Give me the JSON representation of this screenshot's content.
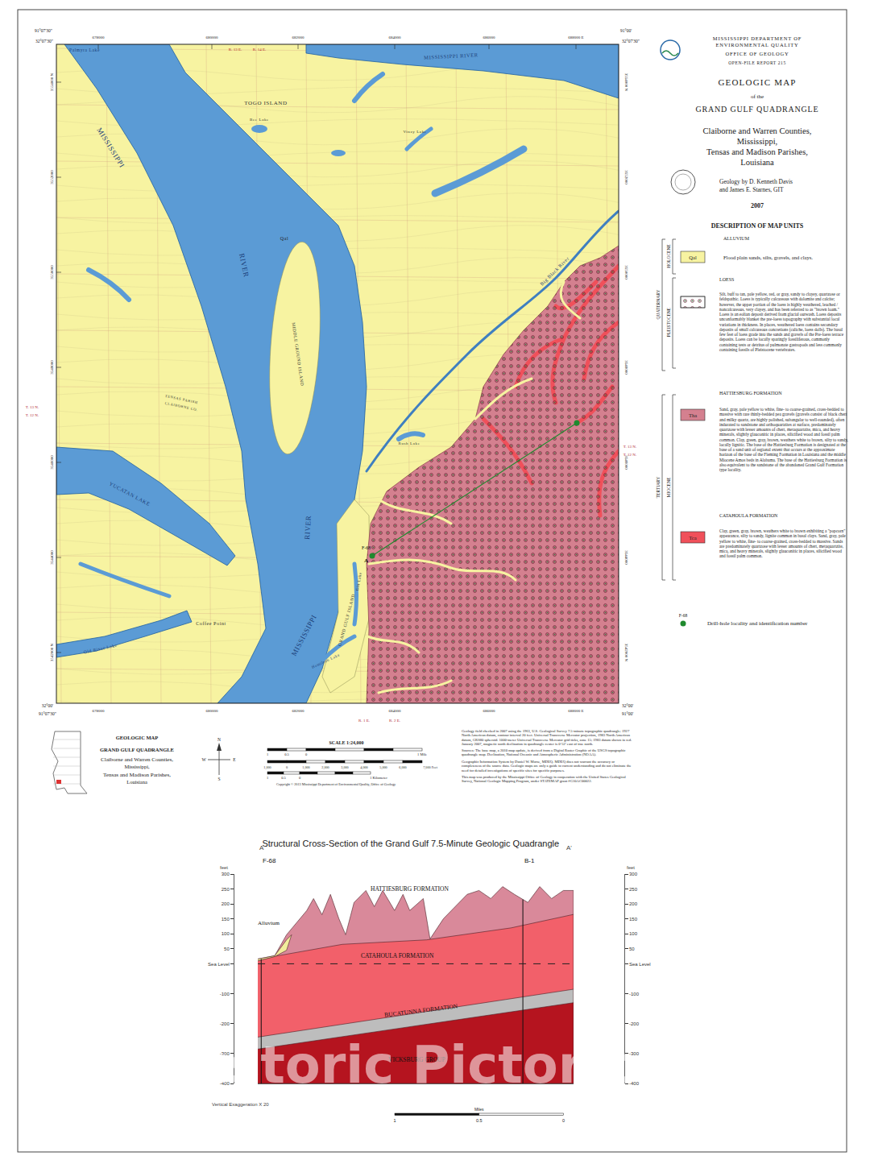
{
  "header": {
    "agency": [
      "MISSISSIPPI DEPARTMENT OF",
      "ENVIRONMENTAL QUALITY"
    ],
    "office": "OFFICE OF GEOLOGY",
    "report": "OPEN-FILE REPORT 215",
    "title": "GEOLOGIC MAP",
    "of": "of the",
    "quad": "GRAND GULF QUADRANGLE",
    "area": [
      "Claiborne and Warren Counties,",
      "Mississippi,",
      "Tensas and Madison Parishes,",
      "Louisiana"
    ],
    "authors": [
      "Geology by D. Kenneth Davis",
      "and James E. Starnes, GIT"
    ],
    "year": "2007"
  },
  "legend": {
    "heading": "DESCRIPTION OF MAP UNITS",
    "eras": [
      "HOLOCENE",
      "QUATERNARY",
      "PLEISTOCENE",
      "TERTIARY",
      "MIOCENE"
    ],
    "units": [
      {
        "name": "ALLUVIUM",
        "symbol": "Qal",
        "color": "#f7f3a1",
        "description": "Flood plain sands, silts, gravels, and clays."
      },
      {
        "name": "LOESS",
        "marker": "dots",
        "description": "Silt, buff to tan, pale yellow, red, or gray, sandy to clayey, quartzose or feldspathic. Loess is typically calcareous with dolomite and calcite; however, the upper portion of the loess is highly weathered, leached / noncalcareous, very clayey, and has been referred to as \"brown loam.\" Loess is an eolian deposit derived from glacial outwash. Loess deposits unconformably blanket the pre-loess topography with substantial local variations in thickness. In places, weathered loess contains secondary deposits of small calcareous concretions (caliche, loess dolls). The basal few feet of loess grade into the sands and gravels of the Pre-loess terrace deposits. Loess can be locally sparingly fossiliferous, commonly containing tests or detritus of pulmonate gastropods and less commonly containing fossils of Pleistocene vertebrates."
      },
      {
        "name": "HATTIESBURG FORMATION",
        "symbol": "Tha",
        "color": "#d4808f",
        "description": "Sand, gray, pale yellow to white, fine- to coarse-grained, cross-bedded to massive with rare thinly-bedded pea gravels (gravels consist of black chert and milky quartz, are highly polished, subangular to well-rounded), often indurated to sandstone and orthoquartzites at surface, predominately quartzose with lesser amounts of chert, metaquartzite, mica, and heavy minerals, slightly glauconitic in places, silicified wood and fossil palm common. Clay, green, gray, brown, weathers white to brown, silty to sandy, locally lignitic. The base of the Hattiesburg Formation is designated at the base of a sand unit of regional extent that occurs at the approximate horizon of the base of the Fleming Formation in Louisiana and the middle Miocene Amos beds in Alabama. The base of the Hattiesburg Formation is also equivalent to the sandstone of the abandoned Grand Gulf Formation type locality."
      },
      {
        "name": "CATAHOULA FORMATION",
        "symbol": "Tca",
        "color": "#f0505a",
        "description": "Clay, green, gray, brown, weathers white to brown exhibiting a \"popcorn\" appearance, silty to sandy, lignite common in basal clays. Sand, gray, pale yellow to white, fine- to coarse-grained, cross-bedded to massive. Sands are predominately quartzose with lesser amounts of chert, metaquartzite, mica, and heavy minerals, slightly glauconitic in places, silicified wood and fossil palm common."
      }
    ],
    "drill_hole": {
      "id": "F-68",
      "text": "Drill-hole locality and identification number",
      "color": "#1f8a2e"
    }
  },
  "map": {
    "labels": [
      "TOGO ISLAND",
      "MISSISSIPPI RIVER",
      "MISSISSIPPI",
      "RIVER",
      "MIDDLE GROUND ISLAND",
      "YUCATAN LAKE",
      "RIVER",
      "MISSISSIPPI",
      "GRAND GULF ISLAND",
      "Coffee Point",
      "Old River Lake",
      "Hamilton Lake",
      "Palmyra Lake",
      "Big Black River",
      "Rush Lake",
      "Gin Lake",
      "TENSAS PARISH",
      "CLAIBORNE CO.",
      "Qal",
      "Bee Lake",
      "Vinzy Lake"
    ],
    "corners": [
      "32°07'30\"",
      "91°07'30\"",
      "91°00'",
      "32°07'30\"",
      "32°00'",
      "91°07'30\"",
      "91°00'",
      "32°00'"
    ],
    "eastings": [
      "678000",
      "680000",
      "682000",
      "684000",
      "686000",
      "688000 E"
    ],
    "northings": [
      "3554000 N",
      "3552000",
      "3550000",
      "3548000",
      "3546000",
      "3544000",
      "3542000 N"
    ],
    "townships": [
      "R. 13 E.",
      "R. 14 E.",
      "R. 1 E.",
      "R. 2 E.",
      "T. 13 N.",
      "T. 12 N.",
      "T. 13 N.",
      "T. 12 N."
    ],
    "section_line": [
      "F-68",
      "A"
    ]
  },
  "footer": {
    "title_block": [
      "GEOLOGIC MAP",
      "GRAND GULF QUADRANGLE",
      "Claiborne and Warren Counties,",
      "Mississippi,",
      "Tensas and Madison Parishes,",
      "Louisiana"
    ],
    "compass": [
      "N",
      "S",
      "E",
      "W"
    ],
    "scale": {
      "title": "SCALE 1:24,000",
      "miles": [
        "1",
        "0.5",
        "0",
        "1 Mile"
      ],
      "feet": [
        "1,000",
        "0",
        "1,000",
        "2,000",
        "3,000",
        "4,000",
        "5,000",
        "6,000",
        "7,000 Feet"
      ],
      "km": [
        "1",
        "0.5",
        "0",
        "1 Kilometer"
      ]
    },
    "notes": [
      "Geology field checked in 2007 using the 1963, U.S. Geological Survey 7.5-minute topographic quadrangle; 1927 North American datum, contour interval 20 feet. Universal Transverse Mercator projection, 1983 North American datum, GRS80 spheroid. 1000-meter Universal Transverse Mercator grid ticks, zone 15; 1983 datum shown in red. January 2007, magnetic north declination in quadrangle center is 0°52' east of true north.",
      "Sources: The base map, a 2010 map update, is derived from a Digital Raster Graphic of the USGS topographic quadrangle map. Declination, National Oceanic and Atmospheric Administration (NOAA).",
      "Geographic Information System by Daniel W. Morse, MDEQ. MDEQ does not warrant the accuracy or completeness of the source data. Geologic maps are only a guide to current understanding and do not eliminate the need for detailed investigations of specific sites for specific purposes.",
      "This map was produced by the Mississippi Office of Geology in cooperation with the United States Geological Survey, National Geologic Mapping Program, under STATEMAP grant #G10AC00022."
    ],
    "copyright": "Copyright © 2013 Mississippi Department of Environmental Quality, Office of Geology"
  },
  "watermark": "Historic Pictoric ®",
  "chart_data": {
    "type": "area",
    "title": "Structural Cross-Section of the Grand Gulf 7.5-Minute Geologic Quadrangle",
    "section_ends": [
      "A",
      "A'"
    ],
    "y_axis_label": "feet",
    "xlim": [
      0,
      1.87
    ],
    "ylim": [
      -400,
      300
    ],
    "yticks": [
      300,
      250,
      200,
      150,
      100,
      50,
      {
        "value": 0,
        "label": "Sea Level"
      },
      -100,
      -200,
      -300,
      -400
    ],
    "y2lim": [
      -400,
      300
    ],
    "y2ticks": [
      300,
      250,
      200,
      150,
      100,
      50,
      {
        "value": 0,
        "label": "Sea Level"
      },
      -100,
      -200,
      -300,
      -400
    ],
    "tick_labels": "y",
    "grid": false,
    "series": [
      {
        "name": "HATTIESBURG FORMATION",
        "color": "#d9899a",
        "x": [
          0,
          0.1,
          0.17,
          0.21,
          0.29,
          0.33,
          0.38,
          0.43,
          0.48,
          0.52,
          0.57,
          0.64,
          0.69,
          0.74,
          0.81,
          0.86,
          0.9,
          0.98,
          1.02,
          1.1,
          1.17,
          1.24,
          1.31,
          1.38,
          1.45,
          1.52,
          1.6,
          1.67,
          1.74,
          1.81,
          1.87
        ],
        "values": [
          16,
          27,
          97,
          124,
          178,
          218,
          164,
          232,
          151,
          97,
          205,
          245,
          191,
          245,
          178,
          232,
          178,
          218,
          83,
          151,
          191,
          232,
          245,
          218,
          258,
          232,
          205,
          258,
          218,
          245,
          245
        ]
      },
      {
        "name": "CATAHOULA FORMATION",
        "color": "#f2606a",
        "x": [
          0,
          0.1,
          0.5,
          1.0,
          1.5,
          1.87
        ],
        "values": [
          10,
          25,
          65,
          80,
          120,
          165
        ]
      },
      {
        "name": "BUCATUNNA FORMATION",
        "color": "#bdbdbd",
        "x": [
          0,
          1.87
        ],
        "values": [
          -245,
          -85
        ]
      },
      {
        "name": "VICKSBURG GROUP",
        "color": "#b5141f",
        "x": [
          0,
          1.87
        ],
        "values": [
          -285,
          -130
        ]
      },
      {
        "name": "Alluvium",
        "color": "#f2ec9c",
        "x": [
          0,
          0.1,
          0.17,
          0.2
        ],
        "values": [
          16,
          27,
          80,
          97
        ],
        "bottom": [
          10,
          24,
          45,
          97
        ]
      },
      {
        "name": "Sea Level",
        "axis": "y2",
        "color": "#222222",
        "line_style": "dash",
        "x": [
          0,
          1.87
        ],
        "values": [
          0,
          0
        ]
      }
    ],
    "wells": [
      {
        "name": "F-68",
        "x": 0.02,
        "top": 16,
        "bottom": -400
      },
      {
        "name": "B-1",
        "x": 1.57,
        "top": 215,
        "bottom": -400
      }
    ],
    "annotations": [
      "Vertical Exaggeration X 20"
    ],
    "scale_bar": {
      "labels": [
        "1",
        "0.5",
        "0"
      ],
      "unit": "Miles"
    }
  }
}
